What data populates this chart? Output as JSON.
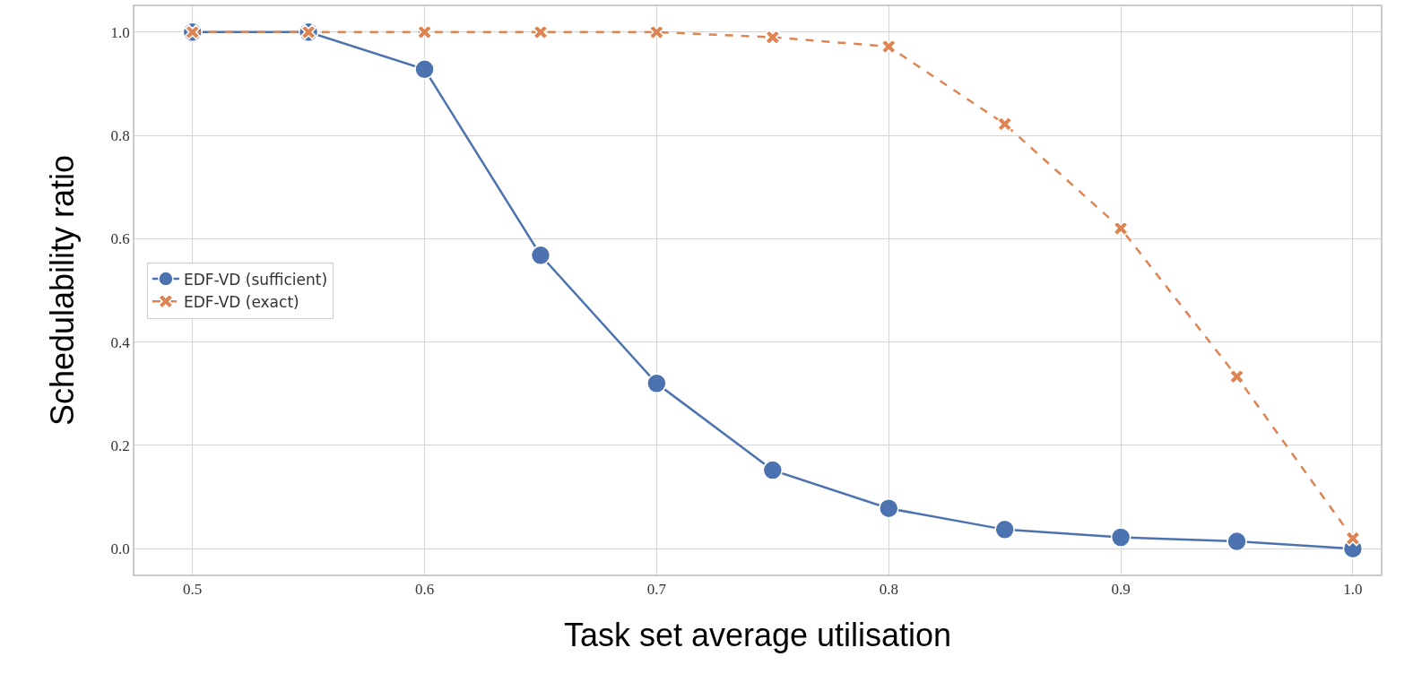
{
  "chart_data": {
    "type": "line",
    "xlabel": "Task set average utilisation",
    "ylabel": "Schedulability ratio",
    "x": [
      0.5,
      0.55,
      0.6,
      0.65,
      0.7,
      0.75,
      0.8,
      0.85,
      0.9,
      0.95,
      1.0
    ],
    "series": [
      {
        "name": "EDF-VD (sufficient)",
        "color": "#4c72b0",
        "marker": "circle",
        "line_style": "solid",
        "values": [
          1.0,
          1.0,
          0.928,
          0.568,
          0.32,
          0.152,
          0.078,
          0.037,
          0.022,
          0.014,
          0.0
        ]
      },
      {
        "name": "EDF-VD (exact)",
        "color": "#dd8452",
        "marker": "cross",
        "line_style": "dashed",
        "values": [
          1.0,
          1.0,
          1.0,
          1.0,
          1.0,
          0.99,
          0.972,
          0.822,
          0.62,
          0.333,
          0.02
        ]
      }
    ],
    "xlim": [
      0.475,
      1.012
    ],
    "xticks": [
      0.5,
      0.6,
      0.7,
      0.8,
      0.9,
      {
        "value": 1.0,
        "label": "1.0"
      }
    ],
    "ylim": [
      -0.05,
      1.05
    ],
    "yticks": [
      {
        "value": 0,
        "label": "0.0"
      },
      0.2,
      0.4,
      0.6,
      0.8,
      {
        "value": 1.0,
        "label": "1.0"
      }
    ],
    "grid": true,
    "legend": "center left"
  }
}
